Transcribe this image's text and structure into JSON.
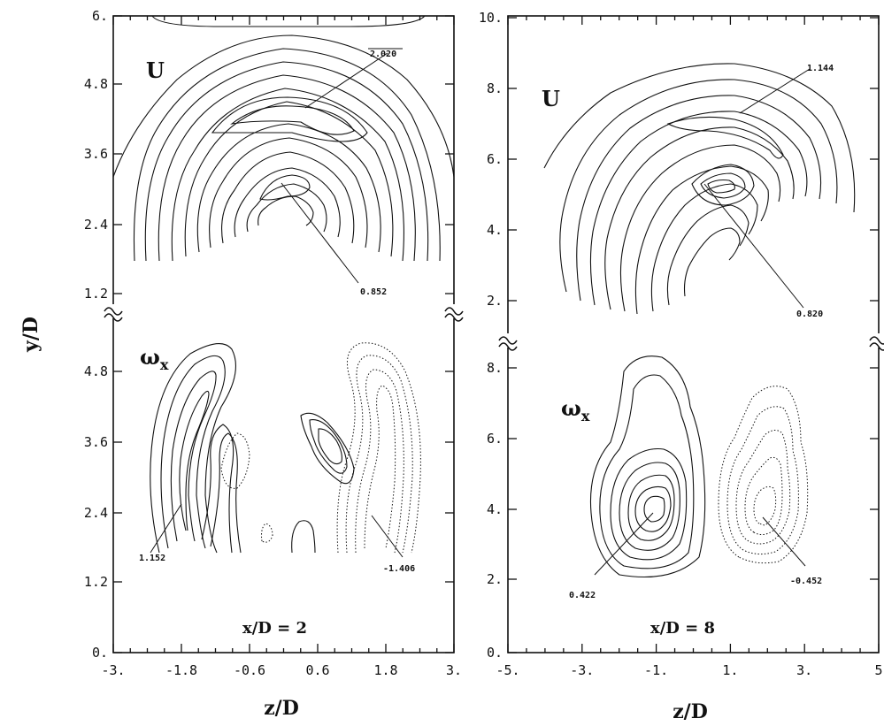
{
  "chart_data": [
    {
      "type": "contour",
      "panel": "left-top",
      "label": "U",
      "xlim": [
        -3,
        3
      ],
      "ylim": [
        1.2,
        6
      ],
      "yticks": [
        "1.2",
        "2.4",
        "3.6",
        "4.8",
        "6."
      ],
      "annotations": [
        {
          "text": "2.020",
          "x": 1.9,
          "y": 5.3
        },
        {
          "text": "0.852",
          "x": 1.1,
          "y": 1.2
        }
      ]
    },
    {
      "type": "contour",
      "panel": "left-bottom",
      "label": "ωx",
      "xlim": [
        -3,
        3
      ],
      "ylim": [
        0,
        5.4
      ],
      "xticks": [
        "-3.",
        "-1.8",
        "-0.6",
        "0.6",
        "1.8",
        "3."
      ],
      "yticks": [
        "0.",
        "1.2",
        "2.4",
        "3.6",
        "4.8"
      ],
      "xlabel": "z/D",
      "condition": "x/D = 2",
      "annotations": [
        {
          "text": "1.152",
          "x": -2.4,
          "y": 1.2
        },
        {
          "text": "-1.406",
          "x": 1.9,
          "y": 1.6
        }
      ]
    },
    {
      "type": "contour",
      "panel": "right-top",
      "label": "U",
      "xlim": [
        -5,
        5
      ],
      "ylim": [
        2,
        10
      ],
      "yticks": [
        "2.",
        "4.",
        "6.",
        "8.",
        "10."
      ],
      "annotations": [
        {
          "text": "1.144",
          "x": 2.8,
          "y": 8.6
        },
        {
          "text": "0.820",
          "x": 2.8,
          "y": 2.4
        }
      ]
    },
    {
      "type": "contour",
      "panel": "right-bottom",
      "label": "ωx",
      "xlim": [
        -5,
        5
      ],
      "ylim": [
        0,
        9
      ],
      "xticks": [
        "-5.",
        "-3.",
        "-1.",
        "1.",
        "3.",
        "5"
      ],
      "yticks": [
        "0.",
        "2.",
        "4.",
        "6.",
        "8."
      ],
      "xlabel": "z/D",
      "condition": "x/D = 8",
      "annotations": [
        {
          "text": "0.422",
          "x": -3.5,
          "y": 2.3
        },
        {
          "text": "-0.452",
          "x": 2.0,
          "y": 2.3
        }
      ]
    }
  ],
  "shared": {
    "ylabel": "y/D"
  }
}
